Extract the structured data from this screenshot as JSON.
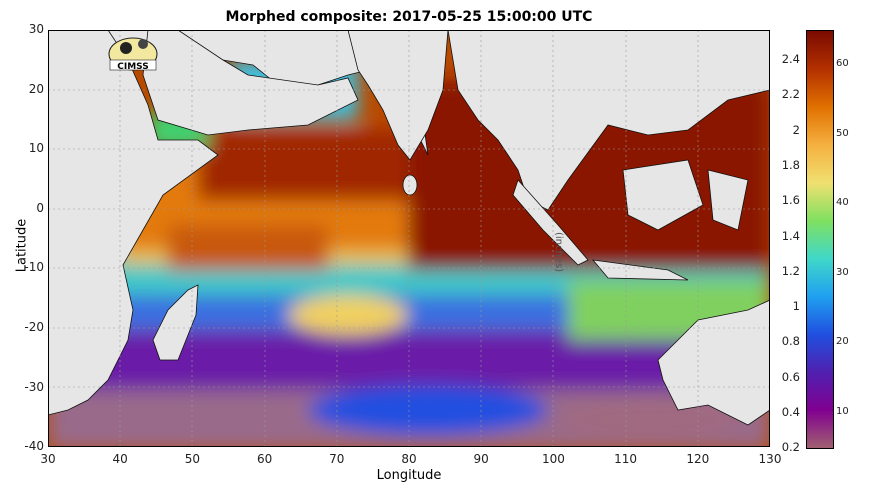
{
  "title": "Morphed composite: 2017-05-25 15:00:00 UTC",
  "logo_text": "CIMSS",
  "x_axis": {
    "label": "Longitude",
    "ticks": [
      "30",
      "40",
      "50",
      "60",
      "70",
      "80",
      "90",
      "100",
      "110",
      "120",
      "130"
    ]
  },
  "y_axis": {
    "label": "Latitude",
    "ticks": [
      "30",
      "20",
      "10",
      "0",
      "-10",
      "-20",
      "-30",
      "-40"
    ]
  },
  "colorbar": {
    "left_ticks": [
      "2.4",
      "2.2",
      "2",
      "1.8",
      "1.6",
      "1.4",
      "1.2",
      "1",
      "0.8",
      "0.6",
      "0.4",
      "0.2"
    ],
    "right_ticks": [
      "60",
      "50",
      "40",
      "30",
      "20",
      "10"
    ],
    "units": "(inches)",
    "colors": [
      "#7a0a00",
      "#b33000",
      "#e07000",
      "#f5b040",
      "#f0e070",
      "#80e060",
      "#40d8c8",
      "#20a0f0",
      "#2050e0",
      "#5020b0",
      "#800090",
      "#a06070"
    ]
  },
  "land_color": "#e6e6e6"
}
